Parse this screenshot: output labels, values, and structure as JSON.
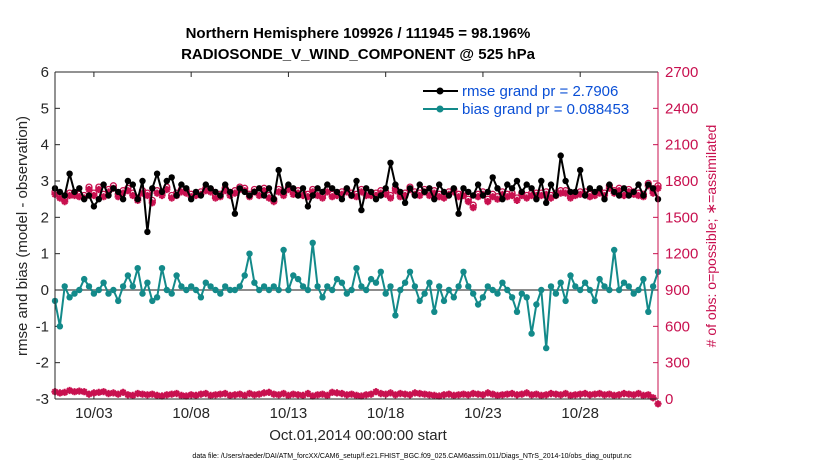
{
  "chart_data": {
    "type": "line",
    "title": "Northern Hemisphere 109926 / 111945 = 98.196%",
    "subtitle": "RADIOSONDE_V_WIND_COMPONENT @ 525 hPa",
    "xlabel": "Oct.01,2014 00:00:00 start",
    "ylabel": "rmse and bias (model - observation)",
    "ylabel_right": "# of obs: o=possible; ∗=assimilated",
    "xlim": [
      0,
      124
    ],
    "ylim": [
      -3,
      6
    ],
    "ylim_right": [
      0,
      2700
    ],
    "x_ticks": [
      {
        "v": 8,
        "label": "10/03"
      },
      {
        "v": 28,
        "label": "10/08"
      },
      {
        "v": 48,
        "label": "10/13"
      },
      {
        "v": 68,
        "label": "10/18"
      },
      {
        "v": 88,
        "label": "10/23"
      },
      {
        "v": 108,
        "label": "10/28"
      }
    ],
    "y_ticks": [
      {
        "v": 6,
        "label": "6"
      },
      {
        "v": 5,
        "label": "5"
      },
      {
        "v": 4,
        "label": "4"
      },
      {
        "v": 3,
        "label": "3"
      },
      {
        "v": 2,
        "label": "2"
      },
      {
        "v": 1,
        "label": "1"
      },
      {
        "v": 0,
        "label": "0"
      },
      {
        "v": -1,
        "label": "-1"
      },
      {
        "v": -2,
        "label": "-2"
      },
      {
        "v": -3,
        "label": "-3"
      }
    ],
    "y_ticks_right": [
      {
        "v": 2700,
        "label": "2700"
      },
      {
        "v": 2400,
        "label": "2400"
      },
      {
        "v": 2100,
        "label": "2100"
      },
      {
        "v": 1800,
        "label": "1800"
      },
      {
        "v": 1500,
        "label": "1500"
      },
      {
        "v": 1200,
        "label": "1200"
      },
      {
        "v": 900,
        "label": "900"
      },
      {
        "v": 600,
        "label": "600"
      },
      {
        "v": 300,
        "label": "300"
      },
      {
        "v": 0,
        "label": "0"
      }
    ],
    "legend": [
      "rmse grand pr = 2.7906",
      "bias grand pr = 0.088453"
    ],
    "legend_position": "top-right",
    "footnote": "data file: /Users/raeder/DAI/ATM_forcXX/CAM6_setup/f.e21.FHIST_BGC.f09_025.CAM6assim.011/Diags_NTrS_2014-10/obs_diag_output.nc",
    "series": [
      {
        "name": "rmse",
        "axis": "left",
        "style": "line-dot",
        "color": "#000000",
        "values": [
          2.8,
          2.7,
          2.6,
          3.2,
          2.7,
          2.8,
          2.5,
          2.6,
          2.3,
          2.5,
          2.9,
          2.6,
          2.8,
          2.7,
          2.5,
          3.0,
          2.9,
          2.5,
          3.0,
          1.6,
          2.8,
          3.2,
          2.7,
          3.0,
          3.1,
          2.6,
          2.9,
          2.8,
          2.5,
          2.7,
          2.6,
          2.9,
          2.8,
          2.7,
          2.6,
          2.9,
          2.7,
          2.1,
          2.8,
          2.7,
          2.6,
          2.7,
          2.8,
          2.6,
          2.8,
          2.5,
          3.3,
          2.7,
          2.9,
          2.8,
          2.6,
          2.8,
          2.3,
          2.6,
          2.8,
          2.7,
          2.9,
          2.8,
          2.7,
          2.5,
          2.8,
          2.6,
          3.0,
          2.2,
          2.8,
          2.7,
          2.5,
          2.6,
          2.8,
          3.5,
          2.9,
          2.7,
          2.4,
          2.8,
          2.6,
          2.9,
          2.7,
          2.8,
          2.5,
          2.9,
          2.7,
          2.6,
          2.8,
          2.1,
          2.8,
          2.7,
          2.6,
          2.9,
          2.6,
          2.7,
          3.1,
          2.8,
          2.5,
          2.9,
          2.8,
          3.0,
          2.7,
          2.9,
          2.8,
          2.5,
          3.0,
          2.4,
          2.9,
          2.6,
          3.7,
          3.0,
          2.7,
          2.7,
          3.3,
          2.6,
          2.8,
          2.7,
          2.8,
          2.5,
          2.9,
          2.7,
          2.6,
          2.8,
          2.6,
          2.7,
          2.9,
          2.6,
          2.9,
          2.8,
          2.5
        ]
      },
      {
        "name": "bias",
        "axis": "left",
        "style": "line-dot",
        "color": "#138a8a",
        "values": [
          -0.3,
          -1.0,
          0.1,
          -0.2,
          -0.1,
          0.0,
          0.3,
          0.1,
          -0.1,
          0.0,
          0.2,
          -0.1,
          0.0,
          -0.3,
          0.1,
          0.4,
          0.1,
          0.6,
          -0.1,
          0.2,
          -0.3,
          -0.2,
          0.6,
          0.0,
          -0.1,
          0.4,
          0.1,
          0.0,
          0.1,
          0.0,
          -0.2,
          0.2,
          0.1,
          0.0,
          -0.1,
          0.1,
          0.0,
          0.0,
          0.1,
          0.4,
          1.0,
          0.2,
          0.0,
          0.1,
          0.0,
          0.1,
          0.0,
          1.1,
          0.0,
          0.4,
          0.3,
          0.1,
          0.0,
          1.3,
          0.1,
          -0.2,
          0.1,
          0.0,
          0.3,
          0.2,
          -0.1,
          0.0,
          0.6,
          0.1,
          0.0,
          0.3,
          0.2,
          0.5,
          -0.1,
          0.1,
          -0.7,
          0.0,
          0.2,
          0.5,
          0.1,
          -0.3,
          -0.1,
          0.2,
          -0.6,
          0.1,
          -0.3,
          0.0,
          -0.2,
          0.1,
          0.5,
          0.1,
          -0.1,
          -0.4,
          -0.2,
          0.1,
          0.0,
          -0.1,
          0.2,
          0.0,
          -0.2,
          -0.6,
          -0.1,
          -0.2,
          -1.2,
          -0.4,
          0.0,
          -1.6,
          0.1,
          -0.1,
          0.2,
          -0.3,
          0.4,
          0.1,
          0.0,
          0.2,
          0.0,
          -0.3,
          0.3,
          0.1,
          0.0,
          1.1,
          0.0,
          0.2,
          0.1,
          -0.1,
          0.0,
          0.3,
          -0.6,
          0.1,
          0.5
        ]
      },
      {
        "name": "possible",
        "axis": "right",
        "style": "marker-o",
        "color": "#c8104f",
        "values": [
          1710,
          1680,
          1650,
          1700,
          1700,
          1690,
          1680,
          1750,
          1700,
          1750,
          1690,
          1730,
          1760,
          1690,
          1720,
          1740,
          1700,
          1660,
          1720,
          1700,
          1640,
          1720,
          1700,
          1750,
          1680,
          1700,
          1730,
          1720,
          1690,
          1700,
          1710,
          1740,
          1730,
          1680,
          1690,
          1740,
          1700,
          1720,
          1750,
          1740,
          1690,
          1730,
          1700,
          1740,
          1680,
          1650,
          1730,
          1700,
          1750,
          1710,
          1720,
          1700,
          1690,
          1730,
          1700,
          1680,
          1730,
          1690,
          1700,
          1710,
          1730,
          1700,
          1690,
          1730,
          1700,
          1700,
          1700,
          1720,
          1710,
          1680,
          1740,
          1690,
          1700,
          1750,
          1710,
          1700,
          1730,
          1700,
          1720,
          1690,
          1680,
          1710,
          1730,
          1690,
          1700,
          1650,
          1600,
          1690,
          1710,
          1650,
          1690,
          1670,
          1710,
          1690,
          1700,
          1660,
          1700,
          1680,
          1700,
          1700,
          1700,
          1710,
          1680,
          1700,
          1720,
          1720,
          1680,
          1700,
          1710,
          1710,
          1690,
          1700,
          1720,
          1700,
          1760,
          1720,
          1740,
          1700,
          1730,
          1710,
          1700,
          1690,
          1780,
          1720,
          1760
        ]
      },
      {
        "name": "assimilated",
        "axis": "right",
        "style": "marker-star",
        "color": "#c8104f",
        "values": [
          1690,
          1660,
          1630,
          1680,
          1680,
          1670,
          1660,
          1730,
          1680,
          1730,
          1670,
          1710,
          1740,
          1670,
          1700,
          1720,
          1680,
          1640,
          1700,
          1680,
          1620,
          1700,
          1680,
          1730,
          1660,
          1680,
          1710,
          1700,
          1670,
          1680,
          1690,
          1720,
          1710,
          1660,
          1670,
          1720,
          1680,
          1700,
          1730,
          1720,
          1670,
          1710,
          1680,
          1720,
          1660,
          1630,
          1710,
          1680,
          1730,
          1690,
          1700,
          1680,
          1670,
          1710,
          1680,
          1660,
          1710,
          1670,
          1680,
          1690,
          1710,
          1680,
          1670,
          1710,
          1680,
          1680,
          1680,
          1700,
          1690,
          1660,
          1720,
          1670,
          1680,
          1730,
          1690,
          1680,
          1710,
          1680,
          1700,
          1670,
          1660,
          1690,
          1710,
          1670,
          1680,
          1630,
          1580,
          1670,
          1690,
          1630,
          1670,
          1650,
          1690,
          1670,
          1680,
          1640,
          1680,
          1660,
          1680,
          1680,
          1680,
          1690,
          1660,
          1680,
          1700,
          1700,
          1660,
          1680,
          1690,
          1690,
          1670,
          1680,
          1700,
          1680,
          1740,
          1700,
          1720,
          1680,
          1710,
          1690,
          1680,
          1670,
          1760,
          1700,
          1740
        ]
      },
      {
        "name": "bottom-count",
        "axis": "right",
        "style": "marker-star",
        "color": "#c8104f",
        "values": [
          60,
          50,
          55,
          70,
          60,
          65,
          60,
          40,
          50,
          55,
          60,
          45,
          50,
          40,
          55,
          35,
          30,
          45,
          40,
          35,
          40,
          30,
          25,
          35,
          40,
          45,
          30,
          25,
          35,
          30,
          40,
          45,
          30,
          35,
          40,
          45,
          30,
          35,
          40,
          30,
          45,
          35,
          40,
          50,
          55,
          40,
          35,
          45,
          30,
          40,
          35,
          30,
          45,
          25,
          35,
          40,
          30,
          55,
          50,
          45,
          35,
          40,
          30,
          25,
          35,
          40,
          60,
          45,
          40,
          50,
          35,
          45,
          40,
          35,
          50,
          45,
          40,
          35,
          30,
          25,
          35,
          40,
          30,
          35,
          40,
          35,
          45,
          40,
          35,
          50,
          40,
          30,
          35,
          40,
          45,
          35,
          40,
          50,
          35,
          40,
          30,
          35,
          45,
          40,
          35,
          45,
          30,
          35,
          40,
          45,
          35,
          40,
          45,
          35,
          40,
          30,
          35,
          45,
          40,
          35,
          45,
          30,
          35,
          10,
          -40
        ]
      }
    ]
  }
}
